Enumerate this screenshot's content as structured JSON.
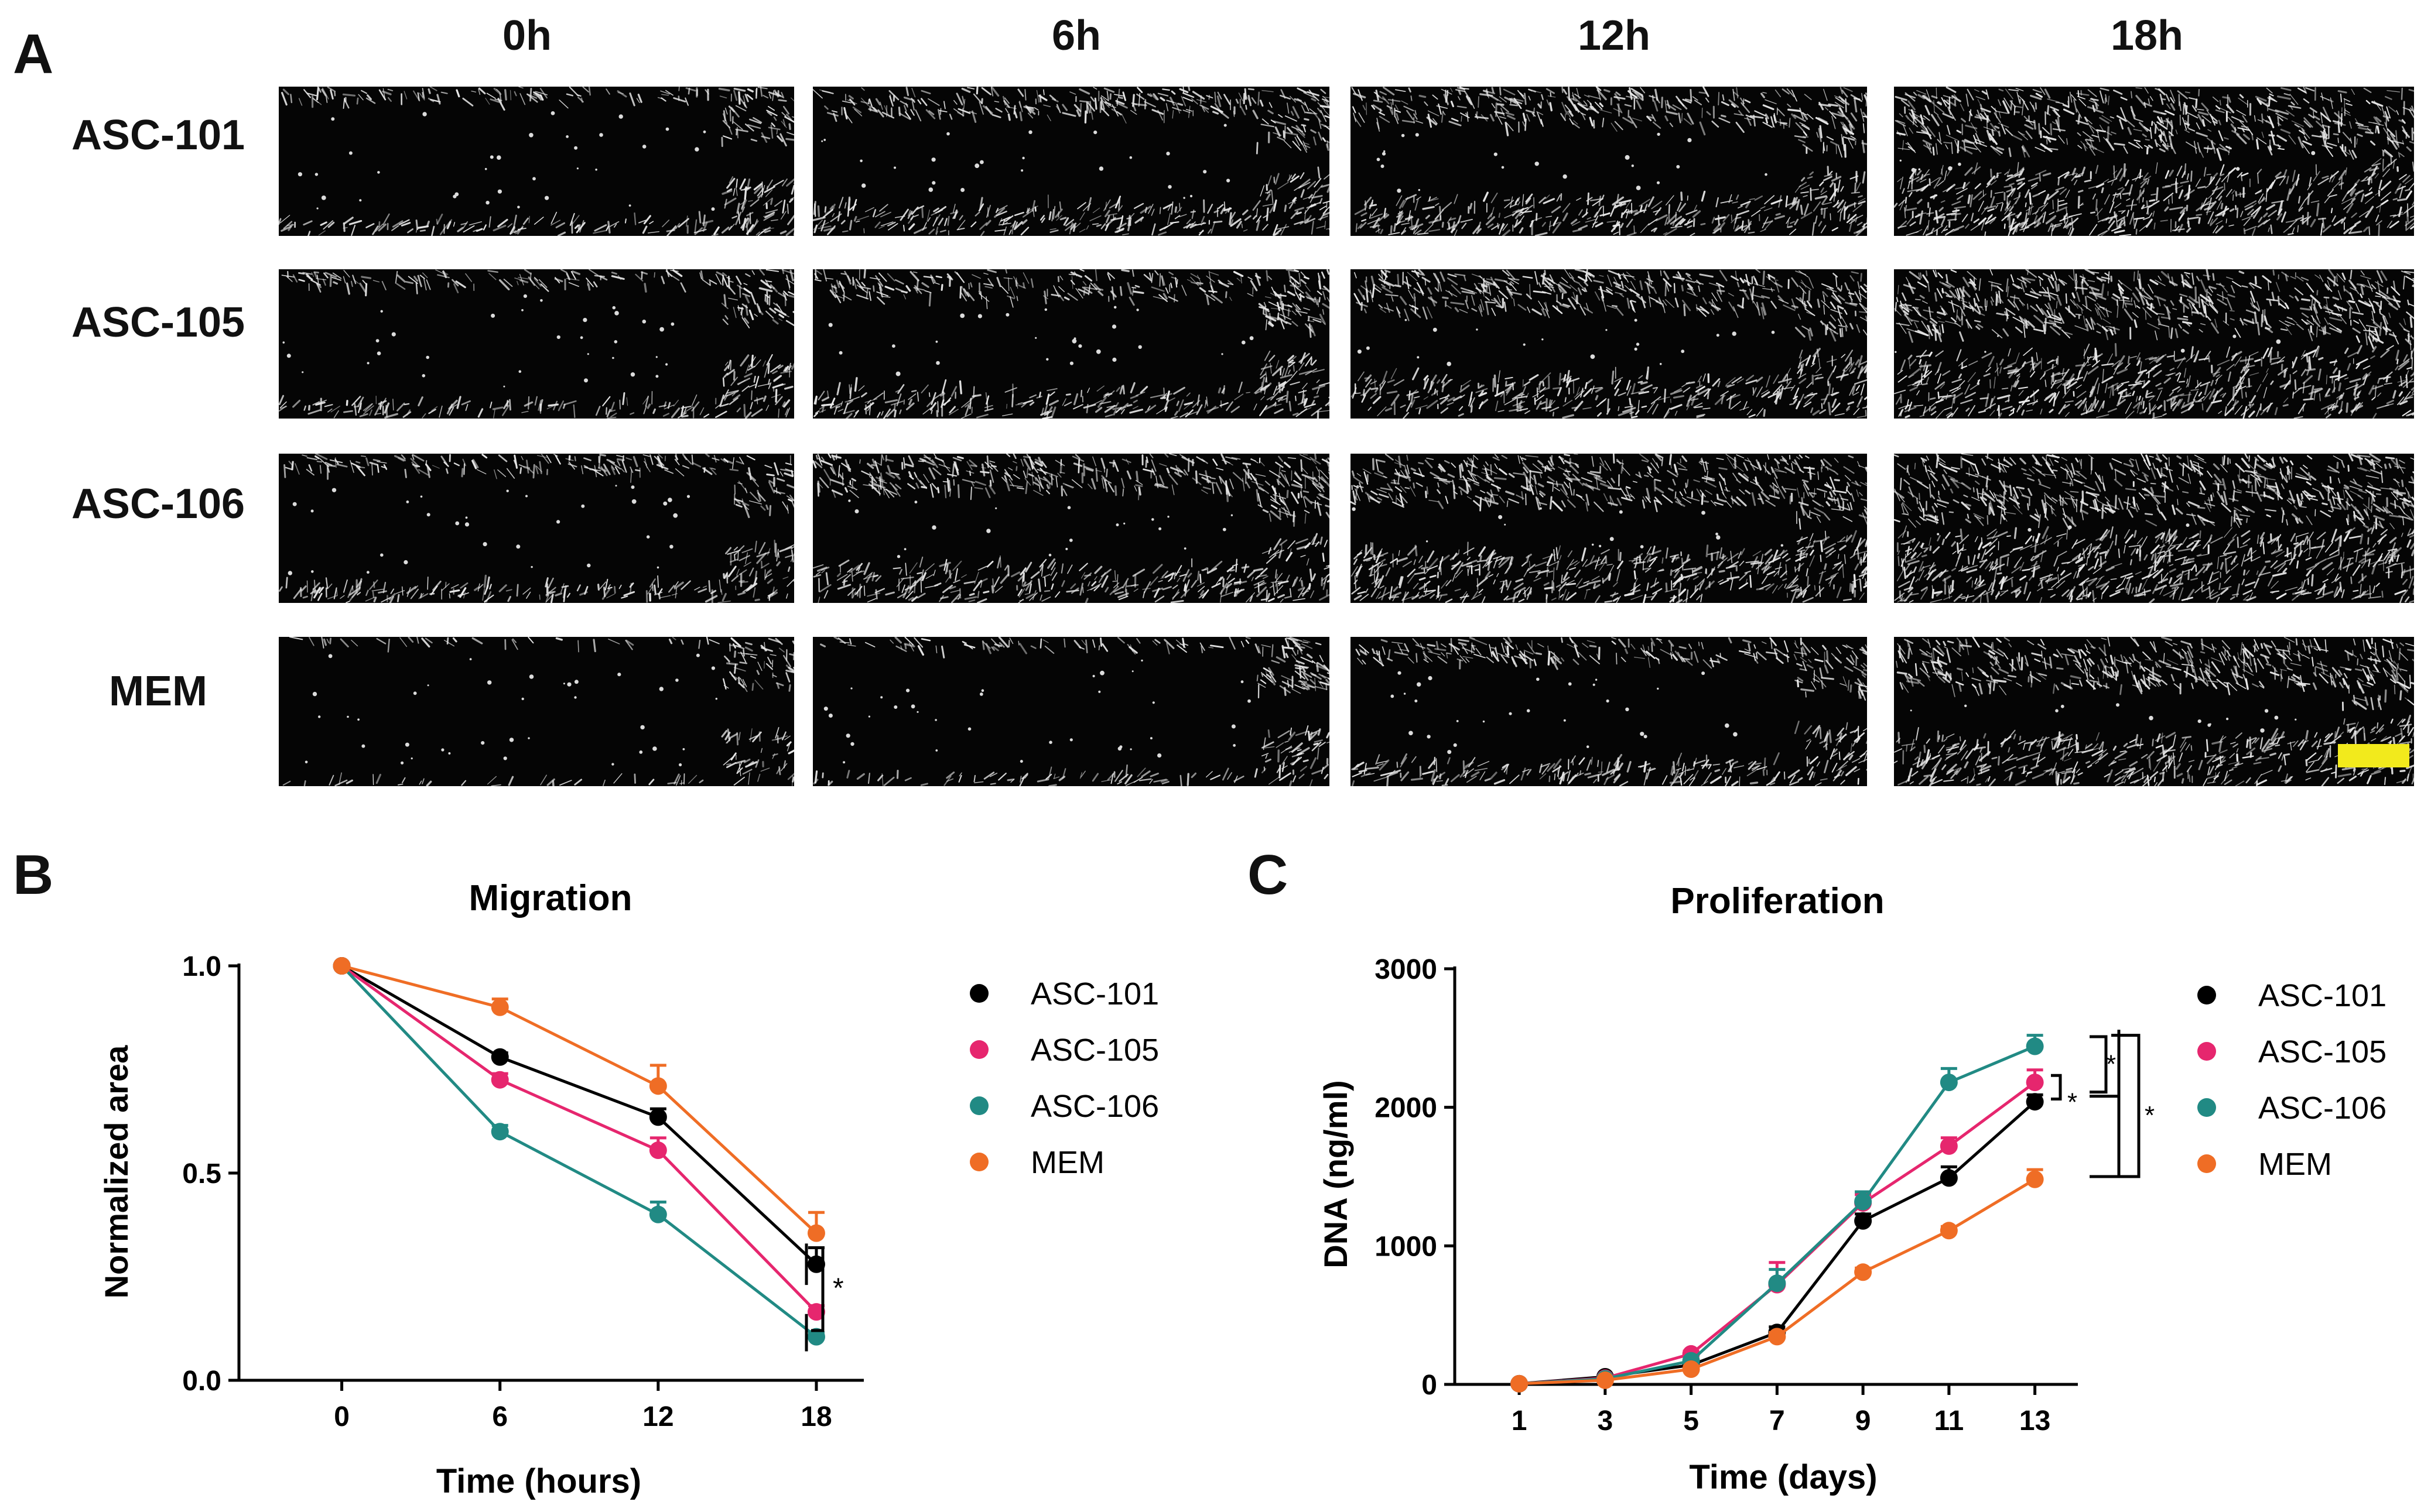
{
  "panel_a": {
    "letter": "A",
    "timepoints": [
      "0h",
      "6h",
      "12h",
      "18h"
    ],
    "groups": [
      "ASC-101",
      "ASC-105",
      "ASC-106",
      "MEM"
    ],
    "wound_remaining": [
      [
        0.82,
        0.62,
        0.5,
        0.16
      ],
      [
        0.8,
        0.62,
        0.46,
        0.15
      ],
      [
        0.78,
        0.5,
        0.34,
        0.1
      ],
      [
        0.95,
        0.86,
        0.68,
        0.34
      ]
    ],
    "colors": {
      "scale_bar": "#f2ea1c",
      "background": "#050505"
    }
  },
  "chart_data": [
    {
      "panel": "B",
      "type": "line",
      "title": "Migration",
      "xlabel": "Time (hours)",
      "ylabel": "Normalized area",
      "x": [
        0,
        6,
        12,
        18
      ],
      "xticks": [
        "0",
        "6",
        "12",
        "18"
      ],
      "yticks": [
        "0.0",
        "0.5",
        "1.0"
      ],
      "xlim": [
        -3.9,
        19.8
      ],
      "ylim": [
        0,
        1.0
      ],
      "series": [
        {
          "name": "ASC-101",
          "color": "#000000",
          "values": [
            1.0,
            0.78,
            0.635,
            0.28
          ],
          "errors": [
            0,
            0.01,
            0.02,
            0.04
          ]
        },
        {
          "name": "ASC-105",
          "color": "#e6266e",
          "values": [
            1.0,
            0.725,
            0.555,
            0.165
          ],
          "errors": [
            0,
            0.015,
            0.03,
            0.015
          ]
        },
        {
          "name": "ASC-106",
          "color": "#218a84",
          "values": [
            1.0,
            0.6,
            0.4,
            0.105
          ],
          "errors": [
            0,
            0.015,
            0.03,
            0.01
          ]
        },
        {
          "name": "MEM",
          "color": "#ef6d25",
          "values": [
            1.0,
            0.9,
            0.71,
            0.355
          ],
          "errors": [
            0,
            0.02,
            0.05,
            0.05
          ]
        }
      ],
      "annotations": [
        "*"
      ],
      "legend": "right"
    },
    {
      "panel": "C",
      "type": "line",
      "title": "Proliferation",
      "xlabel": "Time (days)",
      "ylabel": "DNA (ng/ml)",
      "x": [
        1,
        3,
        5,
        7,
        9,
        11,
        13
      ],
      "xticks": [
        "1",
        "3",
        "5",
        "7",
        "9",
        "11",
        "13"
      ],
      "yticks": [
        "0",
        "1000",
        "2000",
        "3000"
      ],
      "xlim": [
        -0.5,
        14.0
      ],
      "ylim": [
        0,
        3000
      ],
      "series": [
        {
          "name": "ASC-101",
          "color": "#000000",
          "values": [
            5,
            55,
            140,
            375,
            1180,
            1490,
            2040
          ],
          "errors": [
            0,
            10,
            20,
            40,
            50,
            80,
            50
          ]
        },
        {
          "name": "ASC-105",
          "color": "#e6266e",
          "values": [
            5,
            45,
            220,
            720,
            1310,
            1720,
            2180
          ],
          "errors": [
            0,
            10,
            20,
            160,
            60,
            60,
            90
          ]
        },
        {
          "name": "ASC-106",
          "color": "#218a84",
          "values": [
            5,
            40,
            170,
            730,
            1320,
            2180,
            2440
          ],
          "errors": [
            0,
            10,
            20,
            100,
            70,
            100,
            80
          ]
        },
        {
          "name": "MEM",
          "color": "#ef6d25",
          "values": [
            5,
            30,
            110,
            345,
            810,
            1110,
            1480
          ],
          "errors": [
            0,
            10,
            20,
            30,
            30,
            30,
            70
          ]
        }
      ],
      "annotations": [
        "*",
        "*",
        "*"
      ],
      "legend": "right"
    }
  ]
}
